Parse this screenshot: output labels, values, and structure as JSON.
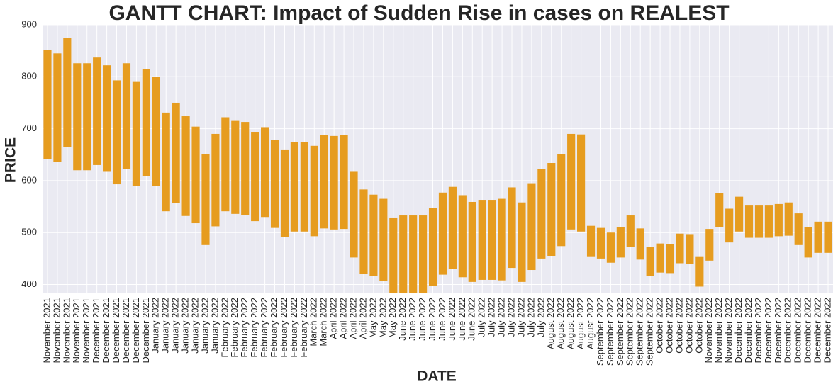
{
  "chart_data": {
    "type": "floating_bar",
    "title": "GANTT CHART: Impact of Sudden Rise in cases on REALEST",
    "x_label": "DATE",
    "y_label": "PRICE",
    "color": "#e69c1f",
    "grid": true,
    "ylim": [
      383,
      900
    ],
    "yticks": [
      400,
      500,
      600,
      700,
      800,
      900
    ],
    "categories": [
      "November 2021",
      "November 2021",
      "November 2021",
      "November 2021",
      "November 2021",
      "December 2021",
      "December 2021",
      "December 2021",
      "December 2021",
      "December 2021",
      "December 2021",
      "January 2022",
      "January 2022",
      "January 2022",
      "January 2022",
      "January 2022",
      "January 2022",
      "January 2022",
      "February 2022",
      "February 2022",
      "February 2022",
      "February 2022",
      "February 2022",
      "February 2022",
      "February 2022",
      "February 2022",
      "February 2022",
      "March 2022",
      "March 2022",
      "April 2022",
      "April 2022",
      "April 2022",
      "April 2022",
      "May 2022",
      "May 2022",
      "May 2022",
      "June 2022",
      "June 2022",
      "June 2022",
      "June 2022",
      "June 2022",
      "June 2022",
      "June 2022",
      "June 2022",
      "July 2022",
      "July 2022",
      "July 2022",
      "July 2022",
      "July 2022",
      "July 2022",
      "July 2022",
      "August 2022",
      "August 2022",
      "August 2022",
      "August 2022",
      "August 2022",
      "September 2022",
      "September 2022",
      "September 2022",
      "September 2022",
      "September 2022",
      "September 2022",
      "October 2022",
      "October 2022",
      "October 2022",
      "October 2022",
      "October 2022",
      "November 2022",
      "November 2022",
      "November 2022",
      "December 2022",
      "December 2022",
      "December 2022",
      "December 2022",
      "December 2022",
      "December 2022",
      "December 2022",
      "December 2022",
      "December 2022",
      "December 2022"
    ],
    "high": [
      851,
      845,
      875,
      826,
      826,
      837,
      822,
      793,
      826,
      790,
      815,
      800,
      731,
      750,
      724,
      704,
      651,
      690,
      722,
      715,
      713,
      694,
      703,
      679,
      660,
      674,
      674,
      667,
      688,
      686,
      688,
      617,
      583,
      573,
      565,
      529,
      533,
      533,
      533,
      547,
      577,
      588,
      572,
      559,
      563,
      563,
      565,
      587,
      558,
      595,
      622,
      634,
      651,
      690,
      689,
      513,
      509,
      500,
      511,
      533,
      508,
      472,
      479,
      478,
      498,
      497,
      453,
      507,
      576,
      546,
      569,
      552,
      552,
      552,
      555,
      558,
      537,
      510,
      521,
      521
    ],
    "low": [
      641,
      636,
      664,
      620,
      620,
      630,
      617,
      593,
      623,
      589,
      609,
      590,
      541,
      557,
      532,
      518,
      476,
      512,
      541,
      536,
      534,
      522,
      530,
      509,
      492,
      502,
      502,
      493,
      508,
      506,
      507,
      452,
      421,
      416,
      407,
      383,
      384,
      384,
      384,
      397,
      419,
      430,
      414,
      405,
      409,
      409,
      408,
      432,
      405,
      428,
      450,
      455,
      474,
      506,
      502,
      453,
      450,
      442,
      452,
      473,
      448,
      417,
      423,
      422,
      441,
      439,
      396,
      446,
      511,
      481,
      502,
      490,
      490,
      490,
      493,
      494,
      476,
      452,
      461,
      461
    ]
  }
}
